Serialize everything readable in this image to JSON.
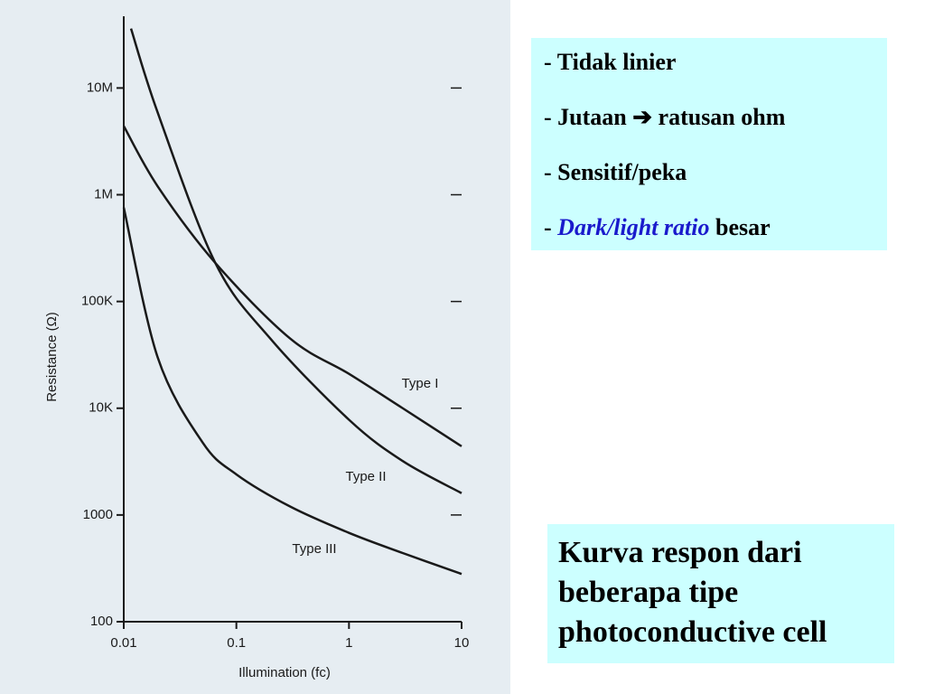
{
  "chart_data": {
    "type": "line",
    "xlabel": "Illumination (fc)",
    "ylabel": "Resistance (Ω)",
    "xscale": "log",
    "yscale": "log",
    "xlim": [
      0.01,
      10
    ],
    "ylim": [
      100,
      47000000
    ],
    "xticks": [
      0.01,
      0.1,
      1,
      10
    ],
    "yticks": [
      100,
      1000,
      {
        "value": 10000,
        "label": "10K"
      },
      {
        "value": 100000,
        "label": "100K"
      },
      {
        "value": 1000000,
        "label": "1M"
      },
      {
        "value": 10000000,
        "label": "10M"
      }
    ],
    "series": [
      {
        "name": "Type I",
        "color": "#1a1a1a",
        "x": [
          0.01,
          0.02,
          0.065,
          0.3,
          1,
          3,
          10
        ],
        "values": [
          4400000,
          1200000,
          230000,
          45000,
          21000,
          10000,
          4400
        ]
      },
      {
        "name": "Type II",
        "color": "#1a1a1a",
        "x": [
          0.0116,
          0.02,
          0.065,
          0.2,
          1,
          3,
          10
        ],
        "values": [
          36000000,
          5900000,
          230000,
          45000,
          7800,
          3200,
          1600
        ]
      },
      {
        "name": "Type III",
        "color": "#1a1a1a",
        "x": [
          0.01,
          0.02,
          0.05,
          0.1,
          0.3,
          1,
          3,
          10
        ],
        "values": [
          760000,
          30000,
          4800,
          2400,
          1200,
          680,
          440,
          280
        ]
      }
    ]
  },
  "bullets": [
    {
      "marker": "-",
      "text": "Tidak linier"
    },
    {
      "marker": "-",
      "text": "Jutaan ➔ ratusan ohm"
    },
    {
      "marker": "-",
      "text": "Sensitif/peka"
    },
    {
      "marker": "-",
      "emphasis": "Dark/light ratio",
      "text": "besar"
    }
  ],
  "caption": [
    "Kurva respon dari",
    "beberapa tipe",
    "photoconductive cell"
  ]
}
